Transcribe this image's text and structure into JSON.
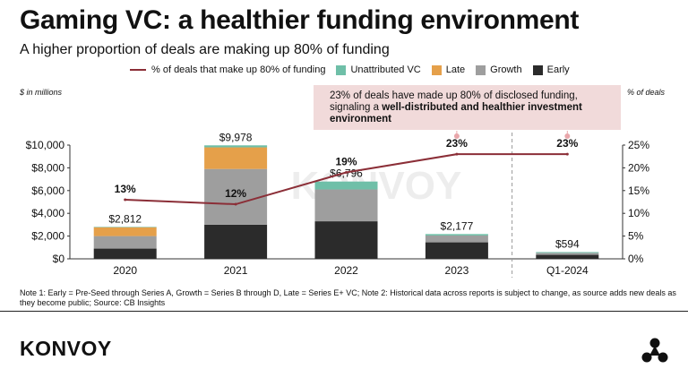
{
  "header": {
    "title": "Gaming VC: a healthier funding environment",
    "subtitle": "A higher proportion of deals are making up 80% of funding"
  },
  "legend": {
    "line_label": "% of deals that make up 80% of funding",
    "unattributed": "Unattributed VC",
    "late": "Late",
    "growth": "Growth",
    "early": "Early"
  },
  "axis_units": {
    "left": "$ in millions",
    "right": "% of deals"
  },
  "callout": {
    "text_plain": "23% of deals have made up 80% of disclosed funding, signaling a ",
    "text_bold": "well-distributed and healthier investment environment"
  },
  "watermark": "KONVOY",
  "note": "Note 1: Early = Pre-Seed through Series A, Growth = Series B through D, Late = Series E+ VC; Note 2: Historical data across reports is subject to change, as source adds new deals as they become public; Source: CB Insights",
  "brand": "KONVOY",
  "colors": {
    "early": "#2b2b2b",
    "growth": "#9e9e9e",
    "late": "#e5a04a",
    "unattributed": "#6fbfa8",
    "line": "#8b2e37",
    "callout_bg": "#f1dada"
  },
  "chart_data": {
    "type": "bar",
    "categories": [
      "2020",
      "2021",
      "2022",
      "2023",
      "Q1-2024"
    ],
    "series": [
      {
        "name": "Early",
        "values": [
          900,
          3000,
          3300,
          1450,
          350
        ]
      },
      {
        "name": "Growth",
        "values": [
          1100,
          4900,
          2800,
          600,
          170
        ]
      },
      {
        "name": "Late",
        "values": [
          780,
          1900,
          0,
          0,
          0
        ]
      },
      {
        "name": "Unattributed VC",
        "values": [
          32,
          178,
          696,
          127,
          74
        ]
      }
    ],
    "totals": [
      2812,
      9978,
      6796,
      2177,
      594
    ],
    "total_labels": [
      "$2,812",
      "$9,978",
      "$6,796",
      "$2,177",
      "$594"
    ],
    "line_series": {
      "name": "% of deals that make up 80% of funding",
      "values": [
        13,
        12,
        19,
        23,
        23
      ],
      "labels": [
        "13%",
        "12%",
        "19%",
        "23%",
        "23%"
      ]
    },
    "ylim": [
      0,
      10000
    ],
    "y_ticks": [
      "$0",
      "$2,000",
      "$4,000",
      "$6,000",
      "$8,000",
      "$10,000"
    ],
    "y2lim": [
      0,
      25
    ],
    "y2_ticks": [
      "0%",
      "5%",
      "10%",
      "15%",
      "20%",
      "25%"
    ],
    "xlabel": "",
    "ylabel": "$ in millions",
    "y2label": "% of deals"
  }
}
